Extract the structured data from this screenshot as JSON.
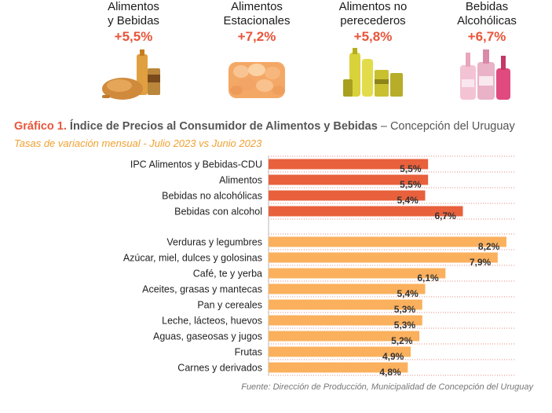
{
  "header_cards": [
    {
      "label": "Alimentos\ny Bebidas",
      "change": "+5,5%",
      "icon": "food-and-drinks-icon"
    },
    {
      "label": "Alimentos\nEstacionales",
      "change": "+7,2%",
      "icon": "seasonal-food-icon"
    },
    {
      "label": "Alimentos no\nperecederos",
      "change": "+5,8%",
      "icon": "non-perishable-food-icon"
    },
    {
      "label": "Bebidas\nAlcohólicas",
      "change": "+6,7%",
      "icon": "alcoholic-drinks-icon"
    }
  ],
  "heading": {
    "number": "Gráfico 1.",
    "title": "Índice de Precios al Consumidor de Alimentos y Bebidas",
    "separator": "–",
    "region": "Concepción del Uruguay"
  },
  "subtitle": "Tasas de variación mensual - Julio 2023 vs Junio 2023",
  "source": "Fuente: Dirección de Producción, Municipalidad de Concepción del Uruguay",
  "colors": {
    "accent": "#e8553a",
    "group1": "#e8603c",
    "group2": "#fbb05d",
    "subtitle": "#f0a030"
  },
  "chart_data": {
    "type": "bar",
    "orientation": "horizontal",
    "grid": true,
    "xlim": [
      0,
      8.5
    ],
    "categories": [
      "IPC Alimentos y Bebidas-CDU",
      "Alimentos",
      "Bebidas no alcohólicas",
      "Bebidas con alcohol",
      "Verduras y legumbres",
      "Azúcar, miel, dulces y golosinas",
      "Café, te y yerba",
      "Aceites, grasas y mantecas",
      "Pan y cereales",
      "Leche, lácteos, huevos",
      "Aguas, gaseosas y jugos",
      "Frutas",
      "Carnes y derivados"
    ],
    "values": [
      5.5,
      5.5,
      5.4,
      6.7,
      8.2,
      7.9,
      6.1,
      5.4,
      5.3,
      5.3,
      5.2,
      4.9,
      4.8
    ],
    "value_labels": [
      "5,5%",
      "5,5%",
      "5,4%",
      "6,7%",
      "8,2%",
      "7,9%",
      "6,1%",
      "5,4%",
      "5,3%",
      "5,3%",
      "5,2%",
      "4,9%",
      "4,8%"
    ],
    "groups": [
      0,
      0,
      0,
      0,
      1,
      1,
      1,
      1,
      1,
      1,
      1,
      1,
      1
    ]
  }
}
